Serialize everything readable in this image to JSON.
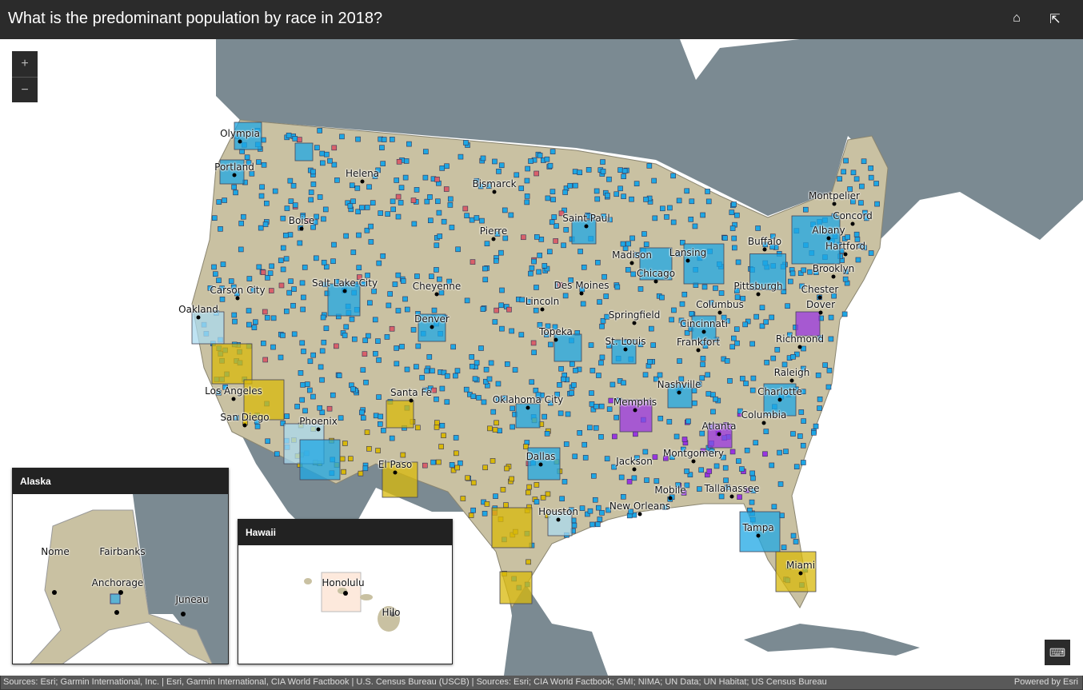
{
  "header": {
    "title": "What is the predominant population by race in 2018?",
    "home_icon": "home-icon",
    "share_icon": "share-icon"
  },
  "zoom": {
    "in_label": "+",
    "out_label": "−"
  },
  "colors": {
    "ocean": "#ffffff",
    "land": "#7b8a92",
    "us_land": "#c9c1a2",
    "blue": "#1ea7e4",
    "light_blue": "#aad9ef",
    "yellow": "#d8b80a",
    "purple": "#9a35e0",
    "red": "#d8606a",
    "black": "#000000"
  },
  "cities": [
    "Olympia",
    "Portland",
    "Helena",
    "Bismarck",
    "Boise",
    "Pierre",
    "Saint Paul",
    "Montpelier",
    "Concord",
    "Albany",
    "Buffalo",
    "Hartford",
    "Madison",
    "Lansing",
    "Brooklyn",
    "Chicago",
    "Pittsburgh",
    "Chester",
    "Salt Lake City",
    "Cheyenne",
    "Carson City",
    "Des Moines",
    "Lincoln",
    "Columbus",
    "Dover",
    "Oakland",
    "Springfield",
    "Denver",
    "Cincinnati",
    "Topeka",
    "Frankfort",
    "St. Louis",
    "Richmond",
    "Raleigh",
    "Nashville",
    "Santa Fe",
    "Los Angeles",
    "Charlotte",
    "Oklahoma City",
    "Memphis",
    "Columbia",
    "San Diego",
    "Phoenix",
    "Atlanta",
    "Dallas",
    "Montgomery",
    "Jackson",
    "El Paso",
    "Mobile",
    "Tallahassee",
    "Houston",
    "New Orleans",
    "Tampa",
    "Miami"
  ],
  "alaska": {
    "title": "Alaska",
    "cities": [
      "Nome",
      "Fairbanks",
      "Anchorage",
      "Juneau"
    ]
  },
  "hawaii": {
    "title": "Hawaii",
    "cities": [
      "Honolulu",
      "Hilo"
    ]
  },
  "keyboard_icon": "keyboard-icon",
  "footer": {
    "attribution": "Sources: Esri; Garmin International, Inc. | Esri, Garmin International, CIA World Factbook | U.S. Census Bureau (USCB) | Sources: Esri; CIA World Factbook; GMI; NIMA; UN Data; UN Habitat; US Census Bureau",
    "powered": "Powered by Esri"
  }
}
